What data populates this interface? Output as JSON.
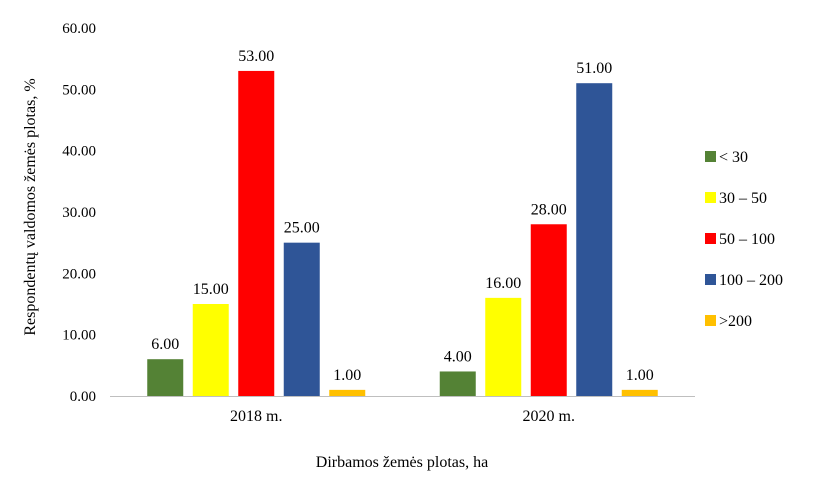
{
  "chart_data": {
    "type": "bar",
    "categories": [
      "2018 m.",
      "2020 m."
    ],
    "series": [
      {
        "name": "< 30",
        "color": "#548235",
        "values": [
          6.0,
          4.0
        ]
      },
      {
        "name": "30 – 50",
        "color": "#FFFF00",
        "values": [
          15.0,
          16.0
        ]
      },
      {
        "name": "50 – 100",
        "color": "#FF0000",
        "values": [
          53.0,
          28.0
        ]
      },
      {
        "name": "100 – 200",
        "color": "#2F5597",
        "values": [
          25.0,
          51.0
        ]
      },
      {
        "name": ">200",
        "color": "#FFC000",
        "values": [
          1.0,
          1.0
        ]
      }
    ],
    "xlabel": "Dirbamos žemės plotas, ha",
    "ylabel": "Respondentų valdomos žemės plotas, %",
    "ylim": [
      0,
      60
    ],
    "yticks": [
      0,
      10,
      20,
      30,
      40,
      50,
      60
    ],
    "value_format_decimals": 2,
    "grid": false,
    "legend_position": "right"
  }
}
